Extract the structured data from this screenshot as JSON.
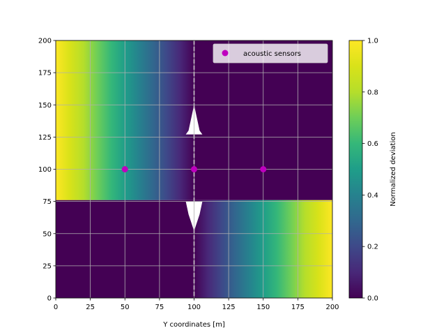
{
  "chart_data": {
    "type": "heatmap",
    "title": "",
    "xlabel": "Y coordinates [m]",
    "ylabel": "",
    "xlim": [
      0,
      200
    ],
    "ylim": [
      0,
      200
    ],
    "x_ticks": [
      "0",
      "25",
      "50",
      "75",
      "100",
      "125",
      "150",
      "175",
      "200"
    ],
    "y_ticks": [
      "0",
      "25",
      "50",
      "75",
      "100",
      "125",
      "150",
      "175",
      "200"
    ],
    "grid": true,
    "colormap": "viridis",
    "colorbar": {
      "label": "Normalized deviation",
      "range": [
        0.0,
        1.0
      ],
      "ticks": [
        "0.0",
        "0.2",
        "0.4",
        "0.6",
        "0.8",
        "1.0"
      ]
    },
    "regions": [
      {
        "x": [
          0,
          100
        ],
        "y": [
          76,
          200
        ],
        "value_at_x0": 1.0,
        "value_at_x100": 0.0
      },
      {
        "x": [
          100,
          200
        ],
        "y": [
          76,
          200
        ],
        "value": 0.0
      },
      {
        "x": [
          0,
          100
        ],
        "y": [
          0,
          76
        ],
        "value": 0.0
      },
      {
        "x": [
          100,
          200
        ],
        "y": [
          0,
          76
        ],
        "value_at_x100": 0.0,
        "value_at_x200": 1.0
      }
    ],
    "legend": {
      "position": "top-right",
      "entries": [
        "acoustic sensors"
      ]
    },
    "series": [
      {
        "name": "acoustic sensors",
        "marker": "circle",
        "color": "#bf00bf",
        "points": [
          {
            "x": 50,
            "y": 100
          },
          {
            "x": 100,
            "y": 100
          },
          {
            "x": 150,
            "y": 100
          }
        ]
      }
    ]
  }
}
